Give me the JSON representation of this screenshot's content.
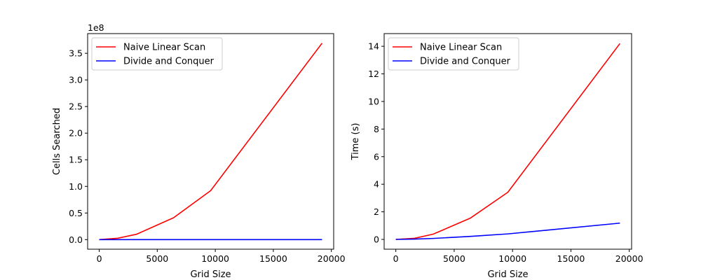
{
  "chart_data": [
    {
      "type": "line",
      "xlabel": "Grid Size",
      "ylabel": "Cells Searched",
      "offset_text": "1e8",
      "xlim": [
        -1000,
        20200
      ],
      "ylim": [
        -0.18,
        3.87
      ],
      "xticks": [
        0,
        5000,
        10000,
        15000,
        20000
      ],
      "xtick_labels": [
        "0",
        "5000",
        "10000",
        "15000",
        "20000"
      ],
      "yticks": [
        0,
        0.5,
        1.0,
        1.5,
        2.0,
        2.5,
        3.0,
        3.5
      ],
      "ytick_labels": [
        "0.0",
        "0.5",
        "1.0",
        "1.5",
        "2.0",
        "2.5",
        "3.0",
        "3.5"
      ],
      "legend_position": "upper-left",
      "grid": false,
      "series": [
        {
          "name": "Naive Linear Scan",
          "color": "#ff0000",
          "x": [
            0,
            1600,
            3200,
            6400,
            9600,
            19200
          ],
          "y": [
            0.0,
            0.026,
            0.1,
            0.41,
            0.92,
            3.69
          ]
        },
        {
          "name": "Divide and Conquer",
          "color": "#0000ff",
          "x": [
            0,
            1600,
            3200,
            6400,
            9600,
            19200
          ],
          "y": [
            0.0,
            0.0,
            0.0,
            0.0,
            0.0,
            0.0
          ]
        }
      ]
    },
    {
      "type": "line",
      "xlabel": "Grid Size",
      "ylabel": "Time (s)",
      "offset_text": "",
      "xlim": [
        -1000,
        20200
      ],
      "ylim": [
        -0.71,
        14.92
      ],
      "xticks": [
        0,
        5000,
        10000,
        15000,
        20000
      ],
      "xtick_labels": [
        "0",
        "5000",
        "10000",
        "15000",
        "20000"
      ],
      "yticks": [
        0,
        2,
        4,
        6,
        8,
        10,
        12,
        14
      ],
      "ytick_labels": [
        "0",
        "2",
        "4",
        "6",
        "8",
        "10",
        "12",
        "14"
      ],
      "legend_position": "upper-left",
      "grid": false,
      "series": [
        {
          "name": "Naive Linear Scan",
          "color": "#ff0000",
          "x": [
            0,
            1600,
            3200,
            6400,
            9600,
            19200
          ],
          "y": [
            0.0,
            0.08,
            0.38,
            1.55,
            3.42,
            14.2
          ]
        },
        {
          "name": "Divide and Conquer",
          "color": "#0000ff",
          "x": [
            0,
            1600,
            3200,
            6400,
            9600,
            19200
          ],
          "y": [
            0.0,
            0.02,
            0.07,
            0.22,
            0.4,
            1.18
          ]
        }
      ]
    }
  ]
}
